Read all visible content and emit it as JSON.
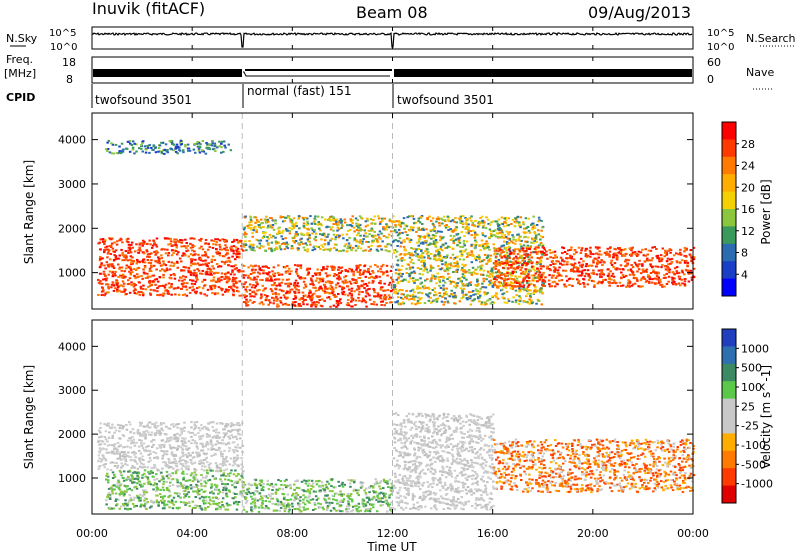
{
  "header": {
    "station": "Inuvik (fitACF)",
    "beam": "Beam 08",
    "date": "09/Aug/2013"
  },
  "strips": {
    "nsky_label": "N.Sky",
    "nsky_ticks": [
      "10^5",
      "10^0"
    ],
    "nsearch_label": "N.Search",
    "nsearch_ticks": [
      "10^5",
      "10^0"
    ],
    "freq_label_1": "Freq.",
    "freq_label_2": "[MHz]",
    "freq_ticks": [
      "18",
      "8"
    ],
    "nave_label": "Nave",
    "nave_ticks": [
      "60",
      "0"
    ],
    "cpid_label": "CPID",
    "cpid_segments": [
      {
        "label": "twofsound 3501",
        "start_hour": 0,
        "end_hour": 6
      },
      {
        "label": "normal (fast) 151",
        "start_hour": 6,
        "end_hour": 12
      },
      {
        "label": "twofsound 3501",
        "start_hour": 12,
        "end_hour": 24
      }
    ]
  },
  "chart_data": [
    {
      "type": "heatmap",
      "title": "",
      "xlabel": "Time UT",
      "ylabel": "Slant Range [km]",
      "colorbar_label": "Power [dB]",
      "x_ticks": [
        "00:00",
        "04:00",
        "08:00",
        "12:00",
        "16:00",
        "20:00",
        "00:00"
      ],
      "y_ticks": [
        "1000",
        "2000",
        "3000",
        "4000"
      ],
      "xlim_hours": [
        0,
        24
      ],
      "ylim_km": [
        180,
        4600
      ],
      "colorbar_ticks": [
        "28",
        "24",
        "20",
        "16",
        "12",
        "8",
        "4"
      ],
      "colorbar_colors": [
        "#ff0000",
        "#ff3a00",
        "#ff7a00",
        "#ffae00",
        "#f5d000",
        "#8cc63f",
        "#3a9a5c",
        "#2b6cb0",
        "#1a3fc7",
        "#0000ff"
      ],
      "scatter_regions": [
        {
          "time": [
            0.2,
            6.0
          ],
          "range": [
            500,
            1800
          ],
          "level": "high"
        },
        {
          "time": [
            6.0,
            12.0
          ],
          "range": [
            250,
            1200
          ],
          "level": "high"
        },
        {
          "time": [
            6.0,
            12.0
          ],
          "range": [
            1500,
            2300
          ],
          "level": "medium"
        },
        {
          "time": [
            12.0,
            18.0
          ],
          "range": [
            300,
            2300
          ],
          "level": "medium"
        },
        {
          "time": [
            16.0,
            24.0
          ],
          "range": [
            700,
            1600
          ],
          "level": "high"
        },
        {
          "time": [
            0.5,
            5.5
          ],
          "range": [
            3700,
            4000
          ],
          "level": "low"
        }
      ]
    },
    {
      "type": "heatmap",
      "title": "",
      "xlabel": "Time UT",
      "ylabel": "Slant Range [km]",
      "colorbar_label": "Velocity [m s^-1]",
      "x_ticks": [
        "00:00",
        "04:00",
        "08:00",
        "12:00",
        "16:00",
        "20:00",
        "00:00"
      ],
      "y_ticks": [
        "1000",
        "2000",
        "3000",
        "4000"
      ],
      "xlim_hours": [
        0,
        24
      ],
      "ylim_km": [
        180,
        4600
      ],
      "colorbar_ticks": [
        "1000",
        "500",
        "100",
        "25",
        "-25",
        "-100",
        "-500",
        "-1000"
      ],
      "colorbar_colors": [
        "#1f3fbf",
        "#2e6fb0",
        "#3c8a64",
        "#5cc84a",
        "#c8c8c8",
        "#c8c8c8",
        "#ffae00",
        "#ff7a00",
        "#ff3a00",
        "#e00000"
      ],
      "scatter_regions": [
        {
          "time": [
            0.2,
            6.0
          ],
          "range": [
            1200,
            2300
          ],
          "level": "grey"
        },
        {
          "time": [
            0.5,
            6.0
          ],
          "range": [
            300,
            1200
          ],
          "level": "green"
        },
        {
          "time": [
            6.0,
            12.0
          ],
          "range": [
            250,
            1000
          ],
          "level": "green"
        },
        {
          "time": [
            12.0,
            16.0
          ],
          "range": [
            300,
            2500
          ],
          "level": "grey"
        },
        {
          "time": [
            16.0,
            24.0
          ],
          "range": [
            700,
            1900
          ],
          "level": "orange"
        }
      ]
    }
  ]
}
